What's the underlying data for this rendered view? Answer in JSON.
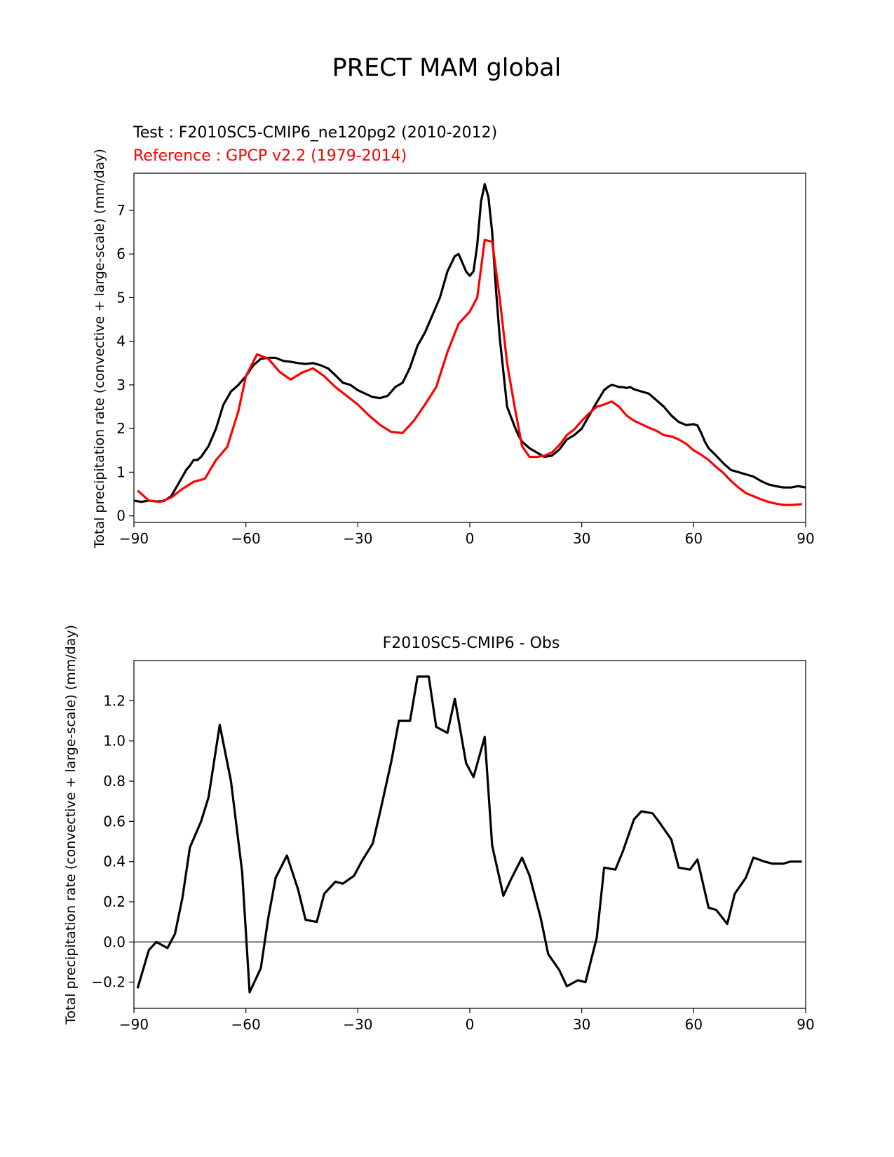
{
  "figure": {
    "title": "PRECT MAM global"
  },
  "chart_data": [
    {
      "type": "line",
      "title_left_lines": [
        {
          "text": "Test : F2010SC5-CMIP6_ne120pg2 (2010-2012)",
          "color": "#000000"
        },
        {
          "text": "Reference : GPCP v2.2 (1979-2014)",
          "color": "#ff0000"
        }
      ],
      "xlabel": "",
      "ylabel": "Total precipitation rate (convective + large-scale) (mm/day)",
      "xlim": [
        -90,
        90
      ],
      "ylim": [
        -0.15,
        7.85
      ],
      "xticks": [
        -90,
        -60,
        -30,
        0,
        30,
        60,
        90
      ],
      "xtick_labels": [
        "−90",
        "−60",
        "−30",
        "0",
        "30",
        "60",
        "90"
      ],
      "yticks": [
        0,
        1,
        2,
        3,
        4,
        5,
        6,
        7
      ],
      "ytick_labels": [
        "0",
        "1",
        "2",
        "3",
        "4",
        "5",
        "6",
        "7"
      ],
      "grid": false,
      "series": [
        {
          "color": "#000000",
          "x": [
            -90,
            -88,
            -86,
            -84,
            -82,
            -80,
            -78,
            -76,
            -75,
            -74,
            -73,
            -72,
            -70,
            -68,
            -66,
            -64,
            -62,
            -60,
            -58,
            -56,
            -54,
            -52,
            -50,
            -48,
            -46,
            -44,
            -42,
            -40,
            -38,
            -36,
            -34,
            -32,
            -30,
            -28,
            -26,
            -24,
            -22,
            -20,
            -18,
            -16,
            -14,
            -12,
            -10,
            -8,
            -6,
            -4,
            -3,
            -2,
            -1,
            0,
            1,
            2,
            3,
            4,
            5,
            6,
            7,
            8,
            10,
            12,
            13,
            14,
            16,
            18,
            20,
            22,
            24,
            26,
            28,
            30,
            32,
            34,
            36,
            37,
            38,
            39,
            40,
            41,
            42,
            43,
            44,
            46,
            48,
            50,
            52,
            54,
            56,
            58,
            60,
            61,
            62,
            63,
            64,
            66,
            68,
            70,
            72,
            74,
            76,
            78,
            80,
            82,
            84,
            86,
            88,
            90
          ],
          "y": [
            0.35,
            0.32,
            0.35,
            0.33,
            0.34,
            0.45,
            0.75,
            1.05,
            1.15,
            1.28,
            1.28,
            1.35,
            1.6,
            2.0,
            2.55,
            2.85,
            3.0,
            3.2,
            3.45,
            3.6,
            3.62,
            3.62,
            3.55,
            3.53,
            3.5,
            3.48,
            3.5,
            3.45,
            3.38,
            3.22,
            3.05,
            3.0,
            2.88,
            2.8,
            2.72,
            2.7,
            2.75,
            2.95,
            3.05,
            3.4,
            3.9,
            4.2,
            4.6,
            5.0,
            5.6,
            5.95,
            6.0,
            5.8,
            5.6,
            5.5,
            5.6,
            6.2,
            7.2,
            7.6,
            7.3,
            6.5,
            5.2,
            4.1,
            2.5,
            2.05,
            1.85,
            1.7,
            1.55,
            1.45,
            1.35,
            1.38,
            1.52,
            1.75,
            1.85,
            2.0,
            2.3,
            2.6,
            2.88,
            2.95,
            3.0,
            2.98,
            2.95,
            2.95,
            2.93,
            2.95,
            2.9,
            2.85,
            2.8,
            2.65,
            2.5,
            2.3,
            2.15,
            2.08,
            2.1,
            2.07,
            1.9,
            1.7,
            1.55,
            1.38,
            1.2,
            1.05,
            1.0,
            0.95,
            0.9,
            0.8,
            0.72,
            0.68,
            0.65,
            0.65,
            0.68,
            0.65
          ]
        },
        {
          "color": "#ff0000",
          "x": [
            -89,
            -86,
            -83,
            -80,
            -77,
            -74,
            -71,
            -68,
            -65,
            -62,
            -60,
            -57,
            -54,
            -51,
            -48,
            -45,
            -42,
            -39,
            -36,
            -33,
            -30,
            -27,
            -24,
            -21,
            -18,
            -15,
            -12,
            -9,
            -6,
            -3,
            0,
            2,
            4,
            6,
            8,
            10,
            12,
            14,
            16,
            18,
            20,
            22,
            24,
            26,
            28,
            30,
            32,
            34,
            36,
            38,
            40,
            42,
            44,
            46,
            48,
            50,
            52,
            54,
            56,
            58,
            60,
            62,
            64,
            66,
            68,
            70,
            72,
            74,
            76,
            78,
            80,
            82,
            84,
            86,
            88,
            89
          ],
          "y": [
            0.58,
            0.35,
            0.32,
            0.42,
            0.62,
            0.78,
            0.85,
            1.28,
            1.58,
            2.4,
            3.2,
            3.7,
            3.6,
            3.3,
            3.12,
            3.28,
            3.38,
            3.2,
            2.95,
            2.75,
            2.55,
            2.3,
            2.08,
            1.92,
            1.9,
            2.18,
            2.55,
            2.95,
            3.75,
            4.4,
            4.68,
            5.0,
            6.32,
            6.28,
            5.0,
            3.5,
            2.5,
            1.6,
            1.35,
            1.35,
            1.38,
            1.45,
            1.62,
            1.85,
            1.98,
            2.18,
            2.35,
            2.5,
            2.55,
            2.62,
            2.5,
            2.3,
            2.18,
            2.1,
            2.02,
            1.95,
            1.85,
            1.82,
            1.75,
            1.65,
            1.5,
            1.4,
            1.28,
            1.12,
            0.98,
            0.8,
            0.65,
            0.52,
            0.45,
            0.38,
            0.32,
            0.28,
            0.25,
            0.25,
            0.26,
            0.27
          ]
        }
      ]
    },
    {
      "type": "line",
      "title_center": "F2010SC5-CMIP6 - Obs",
      "xlabel": "",
      "ylabel": "Total precipitation rate (convective + large-scale) (mm/day)",
      "xlim": [
        -90,
        90
      ],
      "ylim": [
        -0.33,
        1.4
      ],
      "xticks": [
        -90,
        -60,
        -30,
        0,
        30,
        60,
        90
      ],
      "xtick_labels": [
        "−90",
        "−60",
        "−30",
        "0",
        "30",
        "60",
        "90"
      ],
      "yticks": [
        -0.2,
        0.0,
        0.2,
        0.4,
        0.6,
        0.8,
        1.0,
        1.2
      ],
      "ytick_labels": [
        "−0.2",
        "0.0",
        "0.2",
        "0.4",
        "0.6",
        "0.8",
        "1.0",
        "1.2"
      ],
      "grid": false,
      "reference_line": {
        "y": 0,
        "color": "#808080"
      },
      "series": [
        {
          "color": "#000000",
          "x": [
            -89,
            -86,
            -84,
            -81,
            -79,
            -77,
            -75,
            -72,
            -70,
            -67,
            -64,
            -61,
            -59,
            -56,
            -54,
            -52,
            -49,
            -46,
            -44,
            -41,
            -39,
            -36,
            -34,
            -31,
            -29,
            -26,
            -24,
            -21,
            -19,
            -16,
            -14,
            -11,
            -9,
            -6,
            -4,
            -1,
            1,
            4,
            6,
            9,
            11,
            14,
            16,
            19,
            21,
            24,
            26,
            29,
            31,
            34,
            36,
            39,
            41,
            44,
            46,
            49,
            51,
            54,
            56,
            59,
            61,
            64,
            66,
            69,
            71,
            74,
            76,
            79,
            81,
            84,
            86,
            89
          ],
          "y": [
            -0.23,
            -0.04,
            0.0,
            -0.03,
            0.04,
            0.22,
            0.47,
            0.6,
            0.72,
            1.08,
            0.8,
            0.35,
            -0.25,
            -0.13,
            0.12,
            0.32,
            0.43,
            0.26,
            0.11,
            0.1,
            0.24,
            0.3,
            0.29,
            0.33,
            0.4,
            0.49,
            0.65,
            0.9,
            1.1,
            1.1,
            1.32,
            1.32,
            1.07,
            1.04,
            1.21,
            0.89,
            0.82,
            1.02,
            0.48,
            0.23,
            0.31,
            0.42,
            0.33,
            0.12,
            -0.06,
            -0.14,
            -0.22,
            -0.19,
            -0.2,
            0.02,
            0.37,
            0.36,
            0.45,
            0.61,
            0.65,
            0.64,
            0.59,
            0.51,
            0.37,
            0.36,
            0.41,
            0.17,
            0.16,
            0.09,
            0.24,
            0.32,
            0.42,
            0.4,
            0.39,
            0.39,
            0.4,
            0.4
          ]
        }
      ]
    }
  ]
}
